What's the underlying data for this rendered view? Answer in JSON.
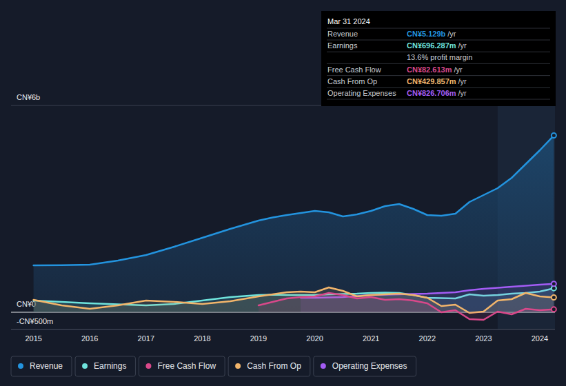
{
  "chart_data": {
    "type": "line",
    "x": [
      2015,
      2015.5,
      2016,
      2016.5,
      2017,
      2017.5,
      2018,
      2018.5,
      2019,
      2019.25,
      2019.5,
      2019.75,
      2020,
      2020.25,
      2020.5,
      2020.75,
      2021,
      2021.25,
      2021.5,
      2021.75,
      2022,
      2022.25,
      2022.5,
      2022.75,
      2023,
      2023.25,
      2023.5,
      2023.75,
      2024,
      2024.25
    ],
    "series": [
      {
        "name": "Revenue",
        "color": "#2394df",
        "values": [
          1360,
          1365,
          1380,
          1500,
          1660,
          1900,
          2160,
          2420,
          2660,
          2750,
          2820,
          2880,
          2940,
          2900,
          2780,
          2840,
          2940,
          3080,
          3140,
          3000,
          2820,
          2800,
          2860,
          3200,
          3400,
          3600,
          3900,
          4300,
          4700,
          5129
        ]
      },
      {
        "name": "Earnings",
        "color": "#6fe3dc",
        "values": [
          340,
          300,
          260,
          230,
          200,
          240,
          340,
          440,
          500,
          510,
          500,
          500,
          500,
          520,
          530,
          540,
          560,
          570,
          560,
          500,
          420,
          410,
          400,
          520,
          480,
          500,
          540,
          560,
          600,
          696.287
        ]
      },
      {
        "name": "Free Cash Flow",
        "color": "#d9488a",
        "values": [
          null,
          null,
          null,
          null,
          null,
          null,
          null,
          null,
          200,
          300,
          400,
          440,
          460,
          560,
          500,
          400,
          440,
          360,
          380,
          340,
          260,
          0,
          60,
          -200,
          -220,
          20,
          -60,
          100,
          60,
          82.613
        ]
      },
      {
        "name": "Cash From Op",
        "color": "#f2b56b",
        "values": [
          360,
          200,
          100,
          200,
          340,
          300,
          240,
          320,
          460,
          520,
          580,
          600,
          580,
          720,
          620,
          460,
          500,
          520,
          540,
          500,
          420,
          180,
          220,
          -20,
          20,
          340,
          380,
          560,
          460,
          429.857
        ]
      },
      {
        "name": "Operating Expenses",
        "color": "#a35cf5",
        "values": [
          null,
          null,
          null,
          null,
          null,
          null,
          null,
          null,
          null,
          null,
          null,
          420,
          420,
          430,
          440,
          470,
          500,
          510,
          520,
          530,
          540,
          560,
          580,
          640,
          680,
          710,
          740,
          770,
          800,
          826.706
        ]
      }
    ],
    "xlim": [
      2014.6,
      2024.27
    ],
    "xticks": [
      2015,
      2016,
      2017,
      2018,
      2019,
      2020,
      2021,
      2022,
      2023,
      2024
    ],
    "ylim": [
      -500,
      6000
    ],
    "yticks": [
      {
        "value": -500,
        "label": "-CN¥500m"
      },
      {
        "value": 0,
        "label": "CN¥0"
      },
      {
        "value": 6000,
        "label": "CN¥6b"
      }
    ],
    "grid": true,
    "legend": "bottom",
    "annotation": {
      "date": "Mar 31 2024",
      "rows": [
        {
          "label": "Revenue",
          "value": "CN¥5.129b",
          "unit": "/yr"
        },
        {
          "label": "Earnings",
          "value": "CN¥696.287m",
          "unit": "/yr"
        },
        {
          "label": "Free Cash Flow",
          "value": "CN¥82.613m",
          "unit": "/yr"
        },
        {
          "label": "Cash From Op",
          "value": "CN¥429.857m",
          "unit": "/yr"
        },
        {
          "label": "Operating Expenses",
          "value": "CN¥826.706m",
          "unit": "/yr"
        }
      ],
      "profit_margin": "13.6% profit margin"
    }
  }
}
